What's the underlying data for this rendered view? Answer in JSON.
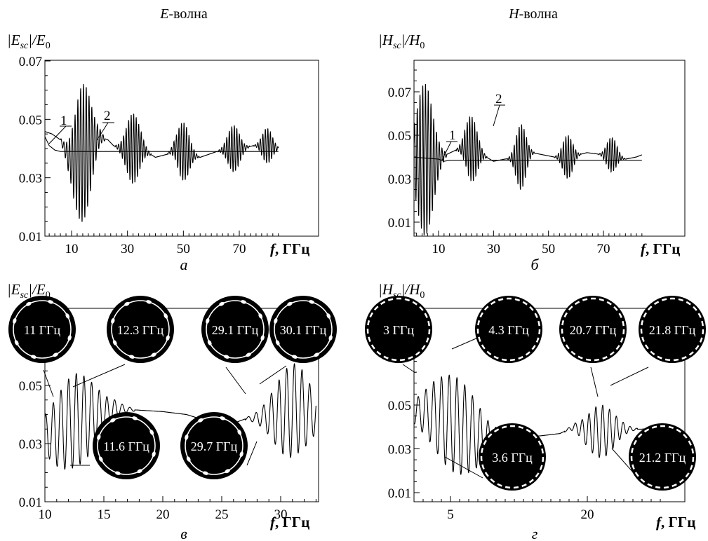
{
  "headers": {
    "left_prefix": "E",
    "left_suffix": "-волна",
    "right_prefix": "H",
    "right_suffix": "-волна"
  },
  "ylabels": {
    "e_prefix": "|E",
    "e_sub": "sc",
    "e_mid": "|/E",
    "e_sub0": "0",
    "h_prefix": "|H",
    "h_sub": "sc",
    "h_mid": "|/H",
    "h_sub0": "0"
  },
  "xlabel": {
    "f": "f",
    "unit": ", ГГц"
  },
  "panel_letters": {
    "a": "а",
    "b": "б",
    "v": "в",
    "g": "г"
  },
  "insets": {
    "v": [
      "11 ГГц",
      "12.3 ГГц",
      "29.1 ГГц",
      "30.1 ГГц",
      "11.6 ГГц",
      "29.7 ГГц"
    ],
    "g": [
      "3 ГГц",
      "4.3 ГГц",
      "20.7 ГГц",
      "21.8 ГГц",
      "3.6 ГГц",
      "21.2 ГГц"
    ]
  },
  "chart_data": [
    {
      "id": "a",
      "type": "line",
      "xlim": [
        0,
        84
      ],
      "ylim": [
        0.01,
        0.07
      ],
      "xticks": [
        10,
        30,
        50,
        70
      ],
      "yticks": [
        0.01,
        0.03,
        0.05,
        0.07
      ],
      "ytick_labels": [
        "0.01",
        "0.03",
        "0.05",
        "0.07"
      ],
      "curve_labels": [
        "1",
        "2"
      ],
      "series": [
        {
          "name": "1",
          "x": [
            0,
            2,
            4,
            6,
            8,
            84
          ],
          "y": [
            0.045,
            0.041,
            0.0395,
            0.039,
            0.039,
            0.039
          ]
        },
        {
          "name": "2",
          "baseline": [
            [
              0,
              0.046
            ],
            [
              3,
              0.045
            ],
            [
              6,
              0.043
            ],
            [
              9,
              0.037
            ],
            [
              11,
              0.036
            ],
            [
              17,
              0.041
            ],
            [
              20,
              0.044
            ],
            [
              23,
              0.043
            ],
            [
              25,
              0.041
            ],
            [
              28,
              0.04
            ],
            [
              35,
              0.04
            ],
            [
              40,
              0.037
            ],
            [
              44,
              0.038
            ],
            [
              47,
              0.04
            ],
            [
              53,
              0.038
            ],
            [
              56,
              0.037
            ],
            [
              62,
              0.039
            ],
            [
              66,
              0.04
            ],
            [
              71,
              0.04
            ],
            [
              75,
              0.041
            ],
            [
              80,
              0.041
            ],
            [
              84,
              0.04
            ]
          ],
          "bursts": [
            {
              "center": 14,
              "half_width": 5,
              "amplitude": 0.0235,
              "period": 1.0
            },
            {
              "center": 32,
              "half_width": 4,
              "amplitude": 0.012,
              "period": 0.9
            },
            {
              "center": 50,
              "half_width": 3.5,
              "amplitude": 0.01,
              "period": 0.9
            },
            {
              "center": 68,
              "half_width": 3.5,
              "amplitude": 0.008,
              "period": 0.9
            },
            {
              "center": 80,
              "half_width": 3,
              "amplitude": 0.006,
              "period": 0.9
            }
          ]
        }
      ]
    },
    {
      "id": "b",
      "type": "line",
      "xlim": [
        0,
        84
      ],
      "ylim": [
        0.01,
        0.08
      ],
      "xticks": [
        10,
        30,
        50,
        70
      ],
      "yticks": [
        0.01,
        0.03,
        0.05,
        0.07
      ],
      "ytick_labels": [
        "0.01",
        "0.03",
        "0.05",
        "0.07"
      ],
      "curve_labels": [
        "1",
        "2"
      ],
      "series": [
        {
          "name": "1",
          "x": [
            0,
            10,
            12,
            14,
            84
          ],
          "y": [
            0.04,
            0.039,
            0.038,
            0.0385,
            0.0385
          ]
        },
        {
          "name": "2",
          "baseline": [
            [
              0,
              0.04
            ],
            [
              8,
              0.038
            ],
            [
              11,
              0.04
            ],
            [
              16,
              0.043
            ],
            [
              20,
              0.045
            ],
            [
              26,
              0.041
            ],
            [
              30,
              0.038
            ],
            [
              34,
              0.039
            ],
            [
              40,
              0.04
            ],
            [
              44,
              0.042
            ],
            [
              48,
              0.041
            ],
            [
              52,
              0.04
            ],
            [
              58,
              0.04
            ],
            [
              64,
              0.042
            ],
            [
              70,
              0.041
            ],
            [
              74,
              0.041
            ],
            [
              78,
              0.039
            ],
            [
              82,
              0.04
            ],
            [
              84,
              0.041
            ]
          ],
          "bursts": [
            {
              "center": 5,
              "half_width": 5,
              "amplitude": 0.035,
              "period": 1.0
            },
            {
              "center": 22,
              "half_width": 3.5,
              "amplitude": 0.015,
              "period": 0.9
            },
            {
              "center": 40,
              "half_width": 3,
              "amplitude": 0.015,
              "period": 0.9
            },
            {
              "center": 57,
              "half_width": 3,
              "amplitude": 0.01,
              "period": 0.9
            },
            {
              "center": 73,
              "half_width": 3,
              "amplitude": 0.008,
              "period": 0.9
            }
          ]
        }
      ]
    },
    {
      "id": "v",
      "type": "line",
      "xlim": [
        10,
        33
      ],
      "ylim": [
        0.01,
        0.07
      ],
      "xticks": [
        10,
        15,
        20,
        25,
        30
      ],
      "yticks": [
        0.01,
        0.03,
        0.05
      ],
      "ytick_labels": [
        "0.01",
        "0.03",
        "0.05"
      ],
      "series": [
        {
          "name": "",
          "baseline": [
            [
              10,
              0.033
            ],
            [
              11,
              0.034
            ],
            [
              12.5,
              0.038
            ],
            [
              15,
              0.04
            ],
            [
              16,
              0.042
            ],
            [
              18,
              0.0415
            ],
            [
              20,
              0.041
            ],
            [
              22,
              0.04
            ],
            [
              24,
              0.0375
            ],
            [
              26,
              0.037
            ],
            [
              27,
              0.0385
            ],
            [
              28.5,
              0.039
            ],
            [
              30,
              0.04
            ],
            [
              31.5,
              0.042
            ],
            [
              33,
              0.04
            ]
          ],
          "bursts": [
            {
              "center": 12.5,
              "half_width": 3.2,
              "amplitude": 0.016,
              "period": 0.65
            },
            {
              "center": 31,
              "half_width": 2.5,
              "amplitude": 0.016,
              "period": 0.65
            }
          ]
        }
      ]
    },
    {
      "id": "g",
      "type": "line",
      "xlim": [
        1,
        28
      ],
      "ylim": [
        0.01,
        0.07
      ],
      "xticks": [
        5,
        20
      ],
      "yticks": [
        0.01,
        0.03,
        0.05
      ],
      "ytick_labels": [
        "0.01",
        "0.03",
        "0.05"
      ],
      "series": [
        {
          "name": "",
          "baseline": [
            [
              1,
              0.047
            ],
            [
              3,
              0.046
            ],
            [
              5,
              0.042
            ],
            [
              7,
              0.038
            ],
            [
              9,
              0.034
            ],
            [
              12,
              0.035
            ],
            [
              15,
              0.036
            ],
            [
              17,
              0.037
            ],
            [
              18.5,
              0.04
            ],
            [
              20,
              0.038
            ],
            [
              22,
              0.038
            ],
            [
              24,
              0.039
            ],
            [
              26,
              0.039
            ],
            [
              28,
              0.04
            ]
          ],
          "bursts": [
            {
              "center": 5.5,
              "half_width": 4.5,
              "amplitude": 0.022,
              "period": 0.85
            },
            {
              "center": 21.5,
              "half_width": 2.5,
              "amplitude": 0.012,
              "period": 0.75
            }
          ]
        }
      ]
    }
  ]
}
